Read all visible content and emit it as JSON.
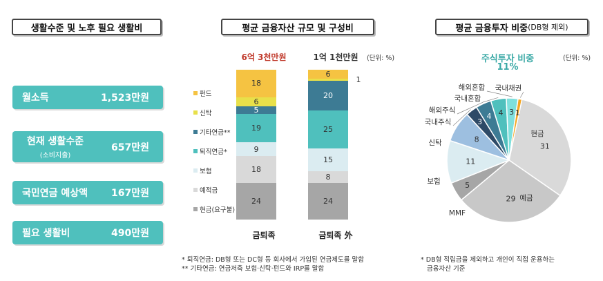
{
  "left_panel": {
    "title": "생활수준 및 노후 필요 생활비",
    "cards": [
      {
        "label": "월소득",
        "value": "1,523만원"
      },
      {
        "label": "현재 생활수준",
        "sublabel": "(소비지출)",
        "value": "657만원"
      },
      {
        "label": "국민연금 예상액",
        "value": "167만원"
      },
      {
        "label": "필요 생활비",
        "value": "490만원"
      }
    ]
  },
  "middle_panel": {
    "title": "평균 금융자산 규모 및 구성비",
    "unit": "(단위: %)",
    "notes": [
      "* 퇴직연금: DB형 또는 DC형 등 회사에서 가입된 연금제도를 말함",
      "** 기타연금: 연금저축 보험·신탁·펀드와 IRP를 말함"
    ]
  },
  "right_panel": {
    "title": "평균 금융투자 비중",
    "title_sub": "(DB형 제외)",
    "stock_heading": "주식투자 비중",
    "stock_value": "11%",
    "unit": "(단위: %)",
    "note_line1": "* DB형 적립금을 제외하고 개인이 직접 운용하는",
    "note_line2": "금융자산 기준"
  },
  "chart_data": [
    {
      "type": "bar",
      "stacked": true,
      "categories": [
        "금퇴족",
        "금퇴족 外"
      ],
      "category_totals": [
        "6억 3천만원",
        "1억 1천만원"
      ],
      "unit": "(단위: %)",
      "series": [
        {
          "name": "현금(요구불)",
          "values": [
            24,
            24
          ],
          "color": "#a6a6a6"
        },
        {
          "name": "예적금",
          "values": [
            18,
            8
          ],
          "color": "#d9d9d9"
        },
        {
          "name": "보험",
          "values": [
            9,
            15
          ],
          "color": "#dbecf1"
        },
        {
          "name": "퇴직연금*",
          "values": [
            19,
            25
          ],
          "color": "#4fc0bd"
        },
        {
          "name": "기타연금**",
          "values": [
            5,
            20
          ],
          "color": "#3d7b94"
        },
        {
          "name": "신탁",
          "values": [
            6,
            1
          ],
          "color": "#e8e04a"
        },
        {
          "name": "펀드",
          "values": [
            18,
            6
          ],
          "color": "#f5c342"
        }
      ],
      "legend_order": [
        "펀드",
        "신탁",
        "기타연금**",
        "퇴직연금*",
        "보험",
        "예적금",
        "현금(요구불)"
      ]
    },
    {
      "type": "pie",
      "title": "평균 금융투자 비중(DB형 제외)",
      "unit": "(단위: %)",
      "slices": [
        {
          "label": "현금",
          "value": 31,
          "color": "#d9d9d9"
        },
        {
          "label": "예금",
          "value": 29,
          "color": "#c8c8c8"
        },
        {
          "label": "MMF",
          "value": 5,
          "color": "#a6a6a6"
        },
        {
          "label": "보험",
          "value": 11,
          "color": "#dbecf1"
        },
        {
          "label": "신탁",
          "value": 8,
          "color": "#9dbfe0"
        },
        {
          "label": "국내주식",
          "value": 3,
          "color": "#2e4a67"
        },
        {
          "label": "해외주식",
          "value": 4,
          "color": "#3d7b94"
        },
        {
          "label": "국내혼합",
          "value": 4,
          "color": "#4fc0bd"
        },
        {
          "label": "해외혼합",
          "value": 3,
          "color": "#7fe0dd"
        },
        {
          "label": "국내채권",
          "value": 1,
          "color": "#f5a623"
        }
      ]
    }
  ]
}
